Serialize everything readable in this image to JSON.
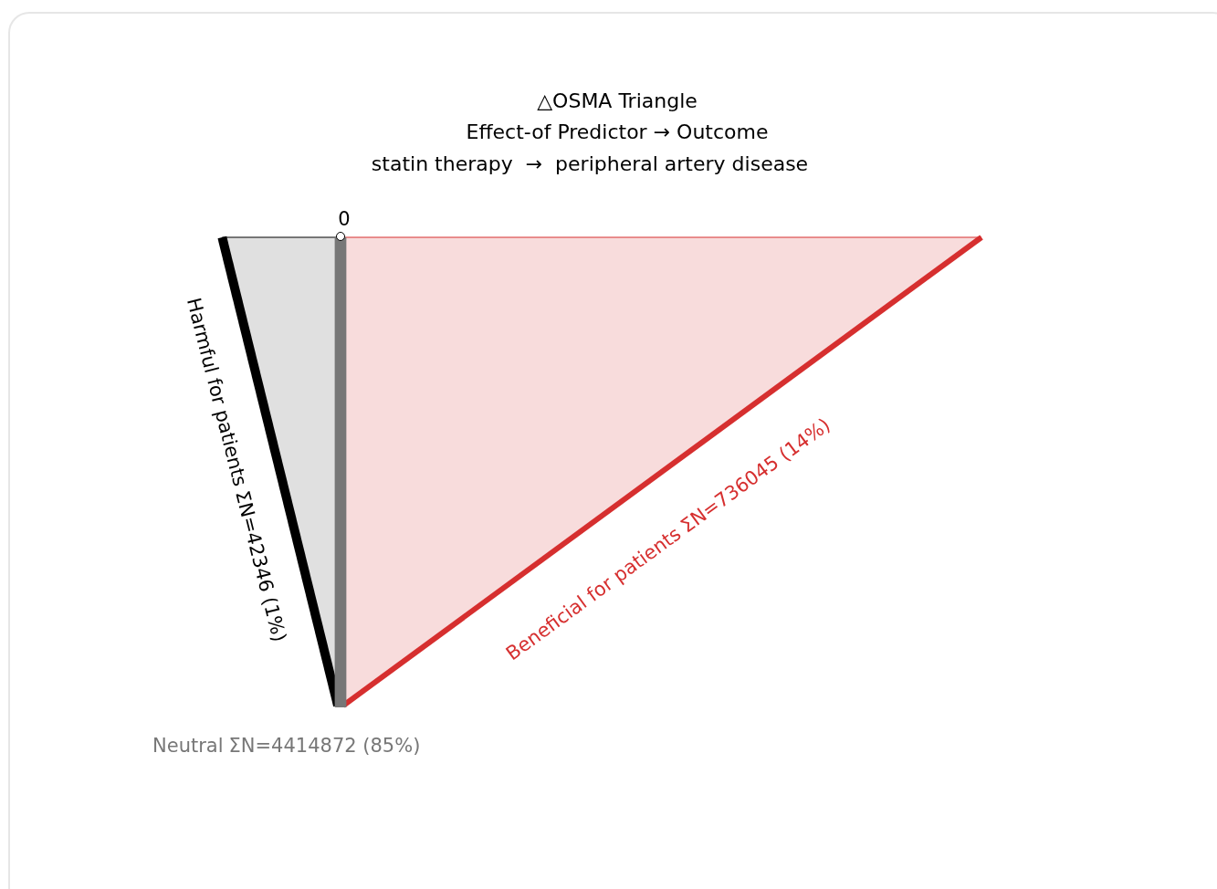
{
  "chart_data": {
    "type": "other",
    "title": "△OSMA Triangle",
    "subtitle": "Effect-of Predictor → Outcome",
    "categories": [
      "Harmful for patients",
      "Neutral",
      "Beneficial for patients"
    ],
    "values": [
      1,
      85,
      14
    ],
    "value_labels": [
      "ΣN=42346 (1%)",
      "ΣN=4414872 (85%)",
      "ΣN=736045 (14%)"
    ],
    "colors": [
      "#000000",
      "#777777",
      "#d62f2f"
    ],
    "annotations": [
      "statin therapy  →  peripheral artery disease",
      "0"
    ]
  }
}
